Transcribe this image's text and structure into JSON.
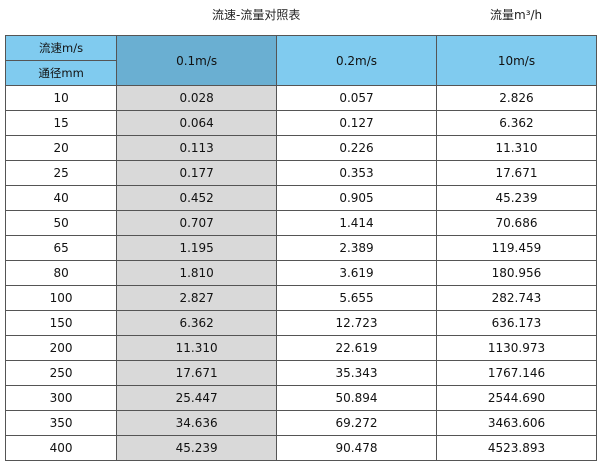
{
  "title": "流速-流量对照表",
  "unit_label": "流量m³/h",
  "header": {
    "velocity_label": "流速m/s",
    "diameter_label": "通径mm",
    "columns": [
      "0.1m/s",
      "0.2m/s",
      "10m/s"
    ]
  },
  "colors": {
    "header": "#80cbef",
    "header_selected": "#6aafd2",
    "first_col_shade": "#d9d9d9"
  },
  "rows": [
    [
      "10",
      "0.028",
      "0.057",
      "2.826"
    ],
    [
      "15",
      "0.064",
      "0.127",
      "6.362"
    ],
    [
      "20",
      "0.113",
      "0.226",
      "11.310"
    ],
    [
      "25",
      "0.177",
      "0.353",
      "17.671"
    ],
    [
      "40",
      "0.452",
      "0.905",
      "45.239"
    ],
    [
      "50",
      "0.707",
      "1.414",
      "70.686"
    ],
    [
      "65",
      "1.195",
      "2.389",
      "119.459"
    ],
    [
      "80",
      "1.810",
      "3.619",
      "180.956"
    ],
    [
      "100",
      "2.827",
      "5.655",
      "282.743"
    ],
    [
      "150",
      "6.362",
      "12.723",
      "636.173"
    ],
    [
      "200",
      "11.310",
      "22.619",
      "1130.973"
    ],
    [
      "250",
      "17.671",
      "35.343",
      "1767.146"
    ],
    [
      "300",
      "25.447",
      "50.894",
      "2544.690"
    ],
    [
      "350",
      "34.636",
      "69.272",
      "3463.606"
    ],
    [
      "400",
      "45.239",
      "90.478",
      "4523.893"
    ]
  ]
}
